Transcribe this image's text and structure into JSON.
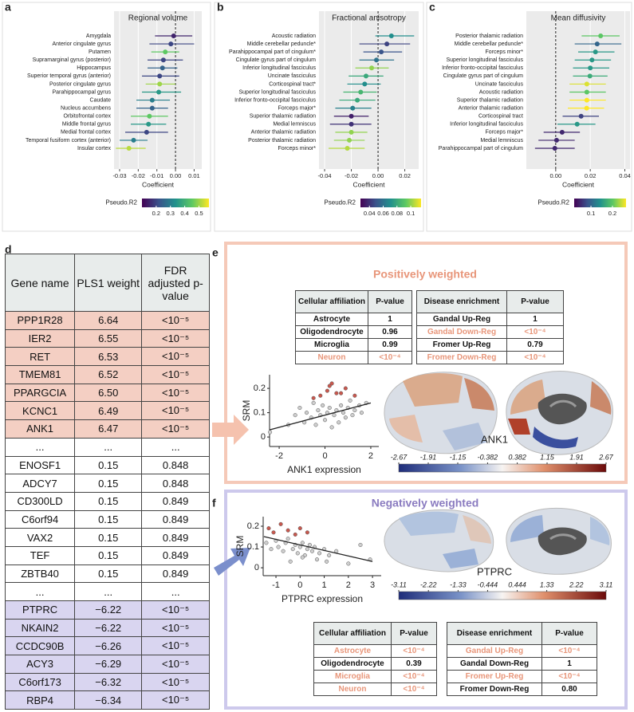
{
  "panel_labels": [
    "a",
    "b",
    "c",
    "d",
    "e",
    "f"
  ],
  "chart_data": [
    {
      "type": "forest",
      "title": "Regional volume",
      "categories": [
        "Amygdala",
        "Anterior cingulate gyrus",
        "Putamen",
        "Supramarginal gyrus (posterior)",
        "Hippocampus",
        "Superior temporal gyrus (anterior)",
        "Posterior cingulate gyrus",
        "Parahippocampal gyrus",
        "Caudate",
        "Nucleus accumbens",
        "Orbitofrontal cortex",
        "Middle frontal gyrus",
        "Medial frontal cortex",
        "Temporal fusiform cortex (anterior)",
        "Insular cortex"
      ],
      "values": [
        -0.001,
        -0.0025,
        -0.0055,
        -0.0065,
        -0.007,
        -0.0085,
        -0.0085,
        -0.009,
        -0.0125,
        -0.0125,
        -0.014,
        -0.0145,
        -0.0155,
        -0.0225,
        -0.025
      ],
      "ci_low": [
        -0.011,
        -0.014,
        -0.013,
        -0.015,
        -0.015,
        -0.018,
        -0.016,
        -0.018,
        -0.021,
        -0.021,
        -0.024,
        -0.024,
        -0.027,
        -0.03,
        -0.032
      ],
      "ci_high": [
        0.009,
        0.01,
        0.002,
        0.004,
        0.001,
        0.002,
        0.0,
        0.003,
        -0.003,
        -0.004,
        -0.004,
        -0.005,
        -0.004,
        -0.015,
        -0.016
      ],
      "pseudo_r2": [
        0.15,
        0.2,
        0.45,
        0.2,
        0.25,
        0.2,
        0.5,
        0.35,
        0.3,
        0.25,
        0.45,
        0.35,
        0.2,
        0.3,
        0.52
      ],
      "xlim": [
        -0.033,
        0.0141
      ],
      "xticks": [
        -0.03,
        -0.02,
        -0.01,
        {
          "value": 0,
          "label": "0.00"
        },
        0.01
      ],
      "xlabel": "Coefficient",
      "reference_line": 0,
      "grid": true,
      "colorbar": {
        "label": "Pseudo.R2",
        "colormap": "viridis",
        "clim": [
          0.1,
          0.57
        ],
        "ticks": [
          0.2,
          0.3,
          0.4,
          0.5
        ]
      }
    },
    {
      "type": "forest",
      "title": "Fractional anisotropy",
      "categories": [
        "Acoustic radiation",
        "Middle cerebellar peduncle*",
        "Parahippocampal part of cingulum*",
        "Cingulate gyrus part of cingulum",
        "Inferior longitudinal fasciculus",
        "Uncinate fasciculus",
        "Corticospinal tract*",
        "Superior longitudinal fasciculus",
        "Inferior fronto-occipital fasciculus",
        "Forceps major*",
        "Superior thalamic radiation",
        "Medial lemniscus",
        "Anterior thalamic radiation",
        "Posterior thalamic radiation",
        "Forceps minor*"
      ],
      "values": [
        0.01,
        0.0066,
        0.0024,
        -0.0012,
        -0.0048,
        -0.009,
        -0.01,
        -0.013,
        -0.0155,
        -0.019,
        -0.02,
        -0.02,
        -0.02,
        -0.0215,
        -0.023
      ],
      "ci_low": [
        -0.002,
        -0.014,
        -0.011,
        -0.014,
        -0.017,
        -0.022,
        -0.023,
        -0.026,
        -0.029,
        -0.032,
        -0.033,
        -0.036,
        -0.032,
        -0.033,
        -0.037
      ],
      "ci_high": [
        0.027,
        0.024,
        0.018,
        0.012,
        0.008,
        0.004,
        0.002,
        -0.001,
        -0.002,
        -0.005,
        -0.007,
        -0.005,
        -0.008,
        -0.01,
        -0.01
      ],
      "pseudo_r2": [
        0.07,
        0.045,
        0.05,
        0.06,
        0.1,
        0.08,
        0.07,
        0.085,
        0.08,
        0.065,
        0.035,
        0.04,
        0.1,
        0.1,
        0.105
      ],
      "xlim": [
        -0.0442,
        0.0304
      ],
      "xticks": [
        -0.04,
        -0.02,
        {
          "value": 0,
          "label": "0.00"
        },
        0.02
      ],
      "xlabel": "Coefficient",
      "reference_line": 0,
      "grid": true,
      "colorbar": {
        "label": "Pseudo.R2",
        "colormap": "viridis",
        "clim": [
          0.027,
          0.115
        ],
        "ticks": [
          0.04,
          0.06,
          0.08,
          0.1
        ]
      }
    },
    {
      "type": "forest",
      "title": "Mean diffusivity",
      "categories": [
        "Posterior thalamic radiation",
        "Middle cerebellar peduncle*",
        "Forceps minor*",
        "Superior longitudinal fasciculus",
        "Inferior fronto-occipital fasciculus",
        "Cingulate gyrus part of cingulum",
        "Uncinate fasciculus",
        "Acoustic radiation",
        "Superior thalamic radiation",
        "Anterior thalamic radiation",
        "Corticospinal tract",
        "Inferior longitudinal fasciculus",
        "Forceps major*",
        "Medial lemniscus",
        "Parahippocampal part of cingulum"
      ],
      "values": [
        0.026,
        0.024,
        0.023,
        0.021,
        0.02,
        0.0198,
        0.018,
        0.018,
        0.018,
        0.0179,
        0.0147,
        0.0124,
        0.0037,
        0.0005,
        -0.0005
      ],
      "ci_low": [
        0.015,
        0.011,
        0.013,
        0.011,
        0.01,
        0.01,
        0.008,
        0.008,
        0.008,
        0.007,
        0.004,
        0.001,
        -0.007,
        -0.01,
        -0.012
      ],
      "ci_high": [
        0.037,
        0.038,
        0.034,
        0.032,
        0.031,
        0.03,
        0.029,
        0.029,
        0.029,
        0.028,
        0.025,
        0.023,
        0.014,
        0.011,
        0.011
      ],
      "pseudo_r2": [
        0.2,
        0.1,
        0.15,
        0.15,
        0.15,
        0.17,
        0.25,
        0.2,
        0.27,
        0.27,
        0.07,
        0.15,
        0.05,
        0.05,
        0.05
      ],
      "xlim": [
        -0.017,
        0.043
      ],
      "xticks": [
        {
          "value": 0,
          "label": "0.00"
        },
        0.02,
        0.04
      ],
      "xlabel": "Coefficient",
      "reference_line": 0,
      "grid": true,
      "colorbar": {
        "label": "Pseudo.R2",
        "colormap": "viridis",
        "clim": [
          0.022,
          0.263
        ],
        "ticks": [
          0.1,
          0.2
        ]
      }
    },
    {
      "type": "scatter",
      "x": [
        -2.4,
        -1.6,
        -1.3,
        -1.1,
        -0.9,
        -0.8,
        -0.6,
        -0.5,
        -0.4,
        -0.3,
        -0.2,
        -0.1,
        0.0,
        0.1,
        0.2,
        0.3,
        0.4,
        0.5,
        0.6,
        0.7,
        0.8,
        0.9,
        1.0,
        1.1,
        1.2,
        1.3,
        1.5,
        1.6,
        1.8,
        -0.2,
        0.1,
        0.3,
        0.5,
        0.9,
        1.3,
        -0.5,
        0.2,
        0.7
      ],
      "values": [
        0.02,
        0.05,
        0.09,
        0.12,
        0.06,
        0.1,
        0.08,
        0.14,
        0.05,
        0.11,
        0.09,
        0.13,
        0.07,
        0.1,
        0.12,
        0.04,
        0.09,
        0.11,
        0.06,
        0.13,
        0.1,
        0.08,
        0.12,
        0.15,
        0.09,
        0.11,
        0.13,
        0.1,
        0.14,
        0.17,
        0.19,
        0.22,
        0.18,
        0.2,
        0.17,
        0.16,
        0.21,
        0.18
      ],
      "colors": [
        "#cfcfcf",
        "#cfcfcf",
        "#cfcfcf",
        "#cfcfcf",
        "#cfcfcf",
        "#cfcfcf",
        "#cfcfcf",
        "#cfcfcf",
        "#cfcfcf",
        "#cfcfcf",
        "#cfcfcf",
        "#cfcfcf",
        "#cfcfcf",
        "#cfcfcf",
        "#cfcfcf",
        "#cfcfcf",
        "#cfcfcf",
        "#cfcfcf",
        "#cfcfcf",
        "#cfcfcf",
        "#cfcfcf",
        "#cfcfcf",
        "#cfcfcf",
        "#cfcfcf",
        "#cfcfcf",
        "#cfcfcf",
        "#cfcfcf",
        "#cfcfcf",
        "#cfcfcf",
        "#c8584e",
        "#c8584e",
        "#c8584e",
        "#c8584e",
        "#c8584e",
        "#c8584e",
        "#c8584e",
        "#c8584e",
        "#c8584e"
      ],
      "xlim": [
        -2.42,
        2.35
      ],
      "ylim": [
        -0.039,
        0.256
      ],
      "xticks": [
        -2,
        0,
        2
      ],
      "yticks": [
        0,
        0.1,
        0.2
      ],
      "xlabel": "ANK1 expression",
      "ylabel": "SRM",
      "fit": {
        "x": [
          -2.4,
          2.0
        ],
        "y": [
          0.03,
          0.14
        ]
      }
    },
    {
      "type": "scatter",
      "x": [
        -1.4,
        -1.2,
        -1.0,
        -0.9,
        -0.7,
        -0.6,
        -0.5,
        -0.3,
        -0.2,
        -0.1,
        0.0,
        0.1,
        0.2,
        0.3,
        0.4,
        0.5,
        0.6,
        0.8,
        1.0,
        1.2,
        1.5,
        2.0,
        2.5,
        2.9,
        -0.4,
        0.1,
        0.7,
        1.1,
        -1.3,
        -1.1,
        -0.8,
        -0.5,
        -0.2,
        0.0,
        0.3
      ],
      "values": [
        0.12,
        0.09,
        0.13,
        0.1,
        0.08,
        0.12,
        0.14,
        0.09,
        0.11,
        0.07,
        0.1,
        0.12,
        0.06,
        0.09,
        0.11,
        0.08,
        0.1,
        0.07,
        0.09,
        0.06,
        0.08,
        0.02,
        0.11,
        0.04,
        0.03,
        0.05,
        0.04,
        0.03,
        0.19,
        0.17,
        0.21,
        0.18,
        0.16,
        0.19,
        0.17
      ],
      "colors": [
        "#cfcfcf",
        "#cfcfcf",
        "#cfcfcf",
        "#cfcfcf",
        "#cfcfcf",
        "#cfcfcf",
        "#cfcfcf",
        "#cfcfcf",
        "#cfcfcf",
        "#cfcfcf",
        "#cfcfcf",
        "#cfcfcf",
        "#cfcfcf",
        "#cfcfcf",
        "#cfcfcf",
        "#cfcfcf",
        "#cfcfcf",
        "#cfcfcf",
        "#cfcfcf",
        "#cfcfcf",
        "#cfcfcf",
        "#cfcfcf",
        "#cfcfcf",
        "#cfcfcf",
        "#cfcfcf",
        "#cfcfcf",
        "#cfcfcf",
        "#cfcfcf",
        "#c8584e",
        "#c8584e",
        "#c8584e",
        "#c8584e",
        "#c8584e",
        "#c8584e",
        "#c8584e"
      ],
      "xlim": [
        -1.53,
        3.36
      ],
      "ylim": [
        -0.038,
        0.246
      ],
      "xticks": [
        -1,
        0,
        1,
        2,
        3
      ],
      "yticks": [
        0,
        0.1,
        0.2
      ],
      "xlabel": "PTPRC expression",
      "ylabel": "SRM",
      "fit": {
        "x": [
          -1.5,
          3.0
        ],
        "y": [
          0.15,
          0.03
        ]
      }
    }
  ],
  "gene_table": {
    "header": [
      "Gene name",
      "PLS1 weight",
      "FDR adjusted p-value"
    ],
    "rows": [
      [
        "PPP1R28",
        "6.64",
        "<10⁻⁵"
      ],
      [
        "IER2",
        "6.55",
        "<10⁻⁵"
      ],
      [
        "RET",
        "6.53",
        "<10⁻⁵"
      ],
      [
        "TMEM81",
        "6.52",
        "<10⁻⁵"
      ],
      [
        "PPARGCIA",
        "6.50",
        "<10⁻⁵"
      ],
      [
        "KCNC1",
        "6.49",
        "<10⁻⁵"
      ],
      [
        "ANK1",
        "6.47",
        "<10⁻⁵"
      ],
      [
        "...",
        "...",
        "..."
      ],
      [
        "ENOSF1",
        "0.15",
        "0.848"
      ],
      [
        "ADCY7",
        "0.15",
        "0.848"
      ],
      [
        "CD300LD",
        "0.15",
        "0.849"
      ],
      [
        "C6orf94",
        "0.15",
        "0.849"
      ],
      [
        "VAX2",
        "0.15",
        "0.849"
      ],
      [
        "TEF",
        "0.15",
        "0.849"
      ],
      [
        "ZBTB40",
        "0.15",
        "0.849"
      ],
      [
        "...",
        "...",
        "..."
      ],
      [
        "PTPRC",
        "−6.22",
        "<10⁻⁵"
      ],
      [
        "NKAIN2",
        "−6.22",
        "<10⁻⁵"
      ],
      [
        "CCDC90B",
        "−6.26",
        "<10⁻⁵"
      ],
      [
        "ACY3",
        "−6.29",
        "<10⁻⁵"
      ],
      [
        "C6orf173",
        "−6.32",
        "<10⁻⁵"
      ],
      [
        "RBP4",
        "−6.34",
        "<10⁻⁵"
      ]
    ],
    "row_fills": [
      "#f4cfc3",
      "#f4cfc3",
      "#f4cfc3",
      "#f4cfc3",
      "#f4cfc3",
      "#f4cfc3",
      "#f4cfc3",
      "#ffffff",
      "#ffffff",
      "#ffffff",
      "#ffffff",
      "#ffffff",
      "#ffffff",
      "#ffffff",
      "#ffffff",
      "#ffffff",
      "#d9d5f0",
      "#d9d5f0",
      "#d9d5f0",
      "#d9d5f0",
      "#d9d5f0",
      "#d9d5f0"
    ]
  },
  "positive": {
    "title": "Positively weighted",
    "cell_table": {
      "header": [
        "Cellular affiliation",
        "P-value"
      ],
      "rows": [
        [
          "Astrocyte",
          "1"
        ],
        [
          "Oligodendrocyte",
          "0.96"
        ],
        [
          "Microglia",
          "0.99"
        ],
        [
          "Neuron",
          "<10⁻⁴"
        ]
      ],
      "highlight": [
        false,
        false,
        false,
        true
      ]
    },
    "disease_table": {
      "header": [
        "Disease enrichment",
        "P-value"
      ],
      "rows": [
        [
          "Gandal Up-Reg",
          "1"
        ],
        [
          "Gandal Down-Reg",
          "<10⁻⁴"
        ],
        [
          "Fromer Up-Reg",
          "0.79"
        ],
        [
          "Fromer Down-Reg",
          "<10⁻⁴"
        ]
      ],
      "highlight": [
        false,
        true,
        false,
        true
      ]
    },
    "brain_label": "ANK1",
    "brain_colorbar": {
      "clim": [
        -2.67,
        2.67
      ],
      "ticks": [
        -2.67,
        -1.91,
        -1.15,
        -0.382,
        0.382,
        1.15,
        1.91,
        2.67
      ]
    }
  },
  "negative": {
    "title": "Negatively weighted",
    "cell_table": {
      "header": [
        "Cellular affiliation",
        "P-value"
      ],
      "rows": [
        [
          "Astrocyte",
          "<10⁻⁴"
        ],
        [
          "Oligodendrocyte",
          "0.39"
        ],
        [
          "Microglia",
          "<10⁻⁴"
        ],
        [
          "Neuron",
          "<10⁻⁴"
        ]
      ],
      "highlight": [
        true,
        false,
        true,
        true
      ]
    },
    "disease_table": {
      "header": [
        "Disease enrichment",
        "P-value"
      ],
      "rows": [
        [
          "Gandal Up-Reg",
          "<10⁻⁴"
        ],
        [
          "Gandal Down-Reg",
          "1"
        ],
        [
          "Fromer Up-Reg",
          "<10⁻⁴"
        ],
        [
          "Fromer Down-Reg",
          "0.80"
        ]
      ],
      "highlight": [
        true,
        false,
        true,
        false
      ]
    },
    "brain_label": "PTPRC",
    "brain_colorbar": {
      "clim": [
        -3.11,
        3.11
      ],
      "ticks": [
        -3.11,
        -2.22,
        -1.33,
        -0.444,
        0.444,
        1.33,
        2.22,
        3.11
      ]
    }
  }
}
